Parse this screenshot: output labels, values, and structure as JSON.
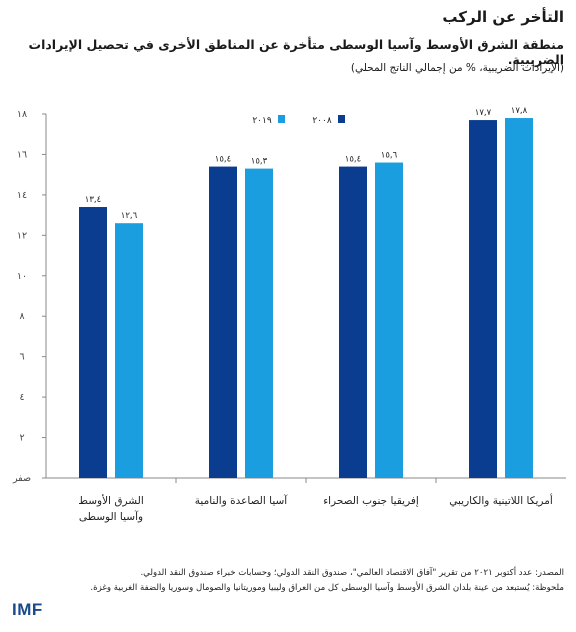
{
  "title": "التأخر عن الركب",
  "subtitle": "منطقة الشرق الأوسط وآسيا الوسطى متأخرة عن المناطق الأخرى في تحصيل الإيرادات الضريبية.",
  "units": "(الإيرادات الضريبية، % من إجمالي الناتج المحلي)",
  "colors": {
    "series_2008": "#0a3d8f",
    "series_2019": "#1a9ee0"
  },
  "chart_data": {
    "type": "bar",
    "categories": [
      [
        "الشرق الأوسط",
        "وآسيا الوسطى"
      ],
      [
        "آسيا الصاعدة والنامية"
      ],
      [
        "إفريقيا جنوب الصحراء"
      ],
      [
        "أمريكا اللاتينية والكاريبي"
      ]
    ],
    "series": [
      {
        "name": "٢٠٠٨",
        "values": [
          13.4,
          15.4,
          15.4,
          17.7
        ],
        "labels": [
          "١٣,٤",
          "١٥,٤",
          "١٥,٤",
          "١٧,٧"
        ]
      },
      {
        "name": "٢٠١٩",
        "values": [
          12.6,
          15.3,
          15.6,
          17.8
        ],
        "labels": [
          "١٢,٦",
          "١٥,٣",
          "١٥,٦",
          "١٧,٨"
        ]
      }
    ],
    "ylim": [
      0,
      18
    ],
    "yticks": [
      {
        "value": 0,
        "label": "صفر"
      },
      {
        "value": 2,
        "label": "٢"
      },
      {
        "value": 4,
        "label": "٤"
      },
      {
        "value": 6,
        "label": "٦"
      },
      {
        "value": 8,
        "label": "٨"
      },
      {
        "value": 10,
        "label": "١٠"
      },
      {
        "value": 12,
        "label": "١٢"
      },
      {
        "value": 14,
        "label": "١٤"
      },
      {
        "value": 16,
        "label": "١٦"
      },
      {
        "value": 18,
        "label": "١٨"
      }
    ],
    "legend_position": "top-right",
    "grid": false
  },
  "notes": {
    "source": "المصدر: عدد أكتوبر ٢٠٢١ من تقرير \"آفاق الاقتصاد العالمي\"، صندوق النقد الدولي؛ وحسابات خبراء صندوق النقد الدولي.",
    "note": "ملحوظة: يُستبعد من عينة بلدان الشرق الأوسط وآسيا الوسطى كل من العراق وليبيا وموريتانيا والصومال وسوريا والضفة الغربية وغزة."
  },
  "logo": "IMF"
}
